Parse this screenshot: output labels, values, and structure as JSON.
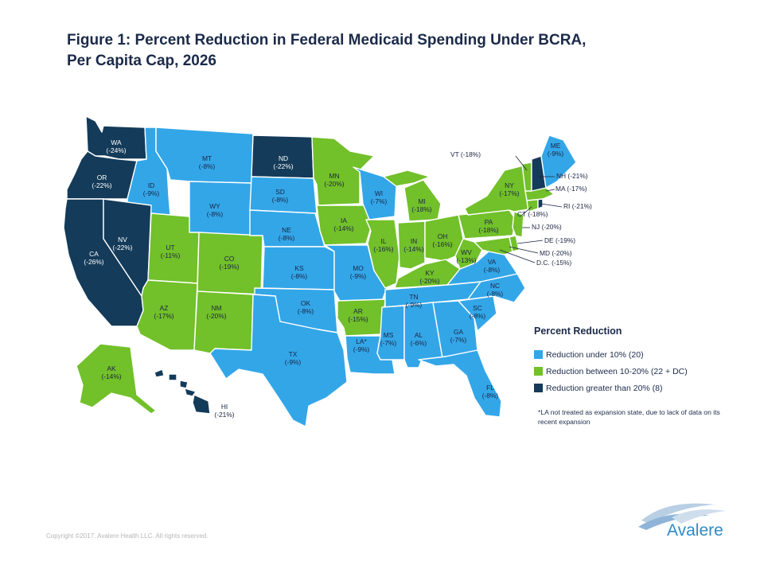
{
  "title": {
    "line1": "Figure 1: Percent Reduction in Federal Medicaid Spending Under BCRA,",
    "line2": "Per Capita Cap, 2026"
  },
  "colors": {
    "under10": "#33a6e8",
    "between10_20": "#72c02a",
    "over20": "#143b59",
    "callout_line": "#1b2440",
    "logo": "#2f8bc6"
  },
  "states": {
    "WA": {
      "text": "WA (-24%)",
      "value": -24
    },
    "OR": {
      "text": "OR (-22%)",
      "value": -22
    },
    "CA": {
      "text": "CA (-26%)",
      "value": -26
    },
    "NV": {
      "text": "NV (-22%)",
      "value": -22
    },
    "ID": {
      "text": "ID (-9%)",
      "value": -9
    },
    "MT": {
      "text": "MT (-8%)",
      "value": -8
    },
    "WY": {
      "text": "WY (-8%)",
      "value": -8
    },
    "UT": {
      "text": "UT (-11%)",
      "value": -11
    },
    "CO": {
      "text": "CO (-19%)",
      "value": -19
    },
    "AZ": {
      "text": "AZ (-17%)",
      "value": -17
    },
    "NM": {
      "text": "NM (-20%)",
      "value": -20
    },
    "ND": {
      "text": "ND (-22%)",
      "value": -22
    },
    "SD": {
      "text": "SD (-8%)",
      "value": -8
    },
    "NE": {
      "text": "NE (-8%)",
      "value": -8
    },
    "KS": {
      "text": "KS (-8%)",
      "value": -8
    },
    "OK": {
      "text": "OK (-8%)",
      "value": -8
    },
    "TX": {
      "text": "TX (-9%)",
      "value": -9
    },
    "MN": {
      "text": "MN (-20%)",
      "value": -20
    },
    "IA": {
      "text": "IA (-14%)",
      "value": -14
    },
    "MO": {
      "text": "MO (-9%)",
      "value": -9
    },
    "AR": {
      "text": "AR (-15%)",
      "value": -15
    },
    "LA": {
      "text": "LA* (-9%)",
      "value": -9
    },
    "WI": {
      "text": "WI (-7%)",
      "value": -7
    },
    "IL": {
      "text": "IL (-16%)",
      "value": -16
    },
    "MI": {
      "text": "MI (-18%)",
      "value": -18
    },
    "IN": {
      "text": "IN (-14%)",
      "value": -14
    },
    "OH": {
      "text": "OH (-16%)",
      "value": -16
    },
    "KY": {
      "text": "KY (-20%)",
      "value": -20
    },
    "TN": {
      "text": "TN (-9%)",
      "value": -9
    },
    "MS": {
      "text": "MS (-7%)",
      "value": -7
    },
    "AL": {
      "text": "AL (-6%)",
      "value": -6
    },
    "GA": {
      "text": "GA (-7%)",
      "value": -7
    },
    "FL": {
      "text": "FL (-8%)",
      "value": -8
    },
    "SC": {
      "text": "SC (-8%)",
      "value": -8
    },
    "NC": {
      "text": "NC (-8%)",
      "value": -8
    },
    "VA": {
      "text": "VA (-8%)",
      "value": -8
    },
    "WV": {
      "text": "WV (-13%)",
      "value": -13
    },
    "PA": {
      "text": "PA (-18%)",
      "value": -18
    },
    "NY": {
      "text": "NY (-17%)",
      "value": -17
    },
    "ME": {
      "text": "ME (-9%)",
      "value": -9
    },
    "AK": {
      "text": "AK (-14%)",
      "value": -14
    },
    "HI": {
      "text": "HI (-21%)",
      "value": -21
    },
    "VT": {
      "text": "VT (-18%)",
      "value": -18
    },
    "NH": {
      "text": "NH (-21%)",
      "value": -21
    },
    "MA": {
      "text": "MA (-17%)",
      "value": -17
    },
    "RI": {
      "text": "RI (-21%)",
      "value": -21
    },
    "CT": {
      "text": "CT (-18%)",
      "value": -18
    },
    "NJ": {
      "text": "NJ (-20%)",
      "value": -20
    },
    "DE": {
      "text": "DE (-19%)",
      "value": -19
    },
    "MD": {
      "text": "MD (-20%)",
      "value": -20
    },
    "DC": {
      "text": "D.C. (-15%)",
      "value": -15
    }
  },
  "legend": {
    "title": "Percent Reduction",
    "items": [
      {
        "label": "Reduction under 10% (20)",
        "color": "#33a6e8"
      },
      {
        "label": "Reduction between 10-20% (22 + DC)",
        "color": "#72c02a"
      },
      {
        "label": "Reduction greater than 20% (8)",
        "color": "#143b59"
      }
    ]
  },
  "note": "*LA not treated as expansion state, due to lack of data on its recent expansion",
  "copyright": "Copyright ©2017. Avalere Health LLC. All rights reserved.",
  "logo": {
    "text": "Avalere"
  }
}
